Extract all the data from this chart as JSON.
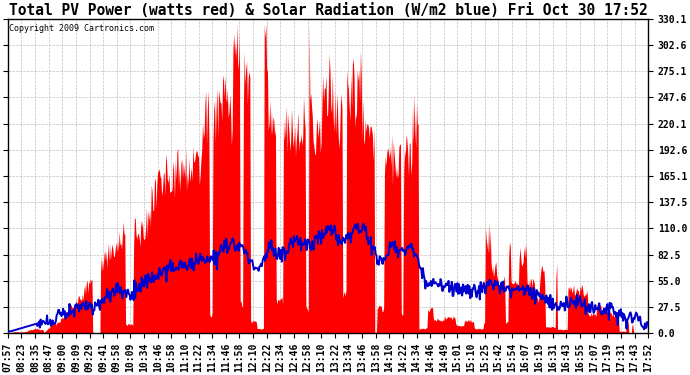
{
  "title": "Total PV Power (watts red) & Solar Radiation (W/m2 blue) Fri Oct 30 17:52",
  "copyright": "Copyright 2009 Cartronics.com",
  "y_min": 0.0,
  "y_max": 330.1,
  "y_ticks": [
    0.0,
    27.5,
    55.0,
    82.5,
    110.0,
    137.5,
    165.1,
    192.6,
    220.1,
    247.6,
    275.1,
    302.6,
    330.1
  ],
  "x_labels": [
    "07:57",
    "08:23",
    "08:35",
    "08:47",
    "09:00",
    "09:09",
    "09:29",
    "09:41",
    "09:58",
    "10:09",
    "10:34",
    "10:46",
    "10:58",
    "11:10",
    "11:22",
    "11:34",
    "11:46",
    "11:58",
    "12:10",
    "12:22",
    "12:34",
    "12:46",
    "12:58",
    "13:10",
    "13:22",
    "13:34",
    "13:46",
    "13:58",
    "14:10",
    "14:22",
    "14:34",
    "14:46",
    "14:49",
    "15:01",
    "15:10",
    "15:25",
    "15:42",
    "15:54",
    "16:07",
    "16:19",
    "16:31",
    "16:43",
    "16:55",
    "17:07",
    "17:19",
    "17:31",
    "17:43",
    "17:52"
  ],
  "background_color": "#ffffff",
  "plot_bg_color": "#ffffff",
  "grid_color": "#b0b0b0",
  "red_color": "#ff0000",
  "blue_color": "#0000cc",
  "title_fontsize": 10.5,
  "tick_fontsize": 7.0
}
